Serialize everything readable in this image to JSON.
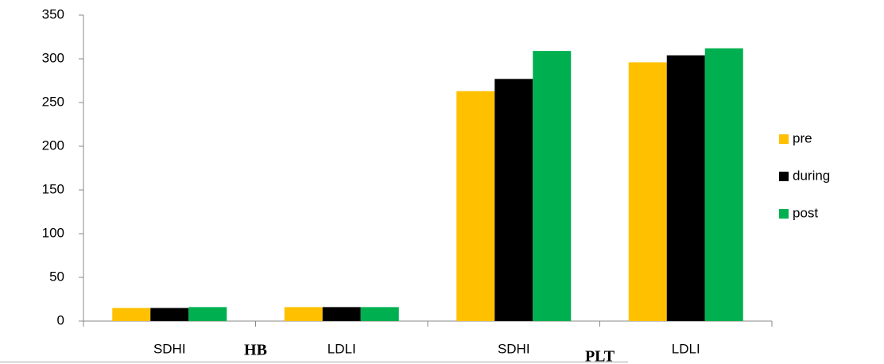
{
  "chart_data": {
    "type": "bar",
    "categories": [
      "SDHI",
      "LDLI",
      "SDHI",
      "LDLI"
    ],
    "groups": [
      "HB",
      "PLT"
    ],
    "series": [
      {
        "name": "pre",
        "color": "#ffc000",
        "values": [
          15,
          16,
          263,
          296
        ]
      },
      {
        "name": "during",
        "color": "#000000",
        "values": [
          15,
          16,
          277,
          304
        ]
      },
      {
        "name": "post",
        "color": "#00b050",
        "values": [
          16,
          16,
          309,
          312
        ]
      }
    ],
    "ylim": [
      0,
      350
    ],
    "yticks": [
      0,
      50,
      100,
      150,
      200,
      250,
      300,
      350
    ],
    "grid": false,
    "legend": "right"
  }
}
